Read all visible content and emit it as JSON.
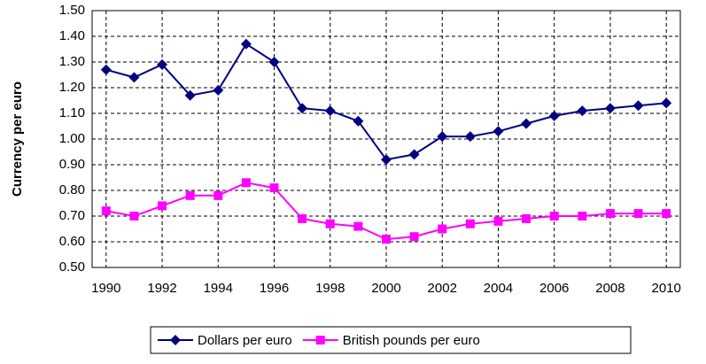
{
  "chart_data": {
    "type": "line",
    "y_label": "Currency per euro",
    "x": [
      1990,
      1991,
      1992,
      1993,
      1994,
      1995,
      1996,
      1997,
      1998,
      1999,
      2000,
      2001,
      2002,
      2003,
      2004,
      2005,
      2006,
      2007,
      2008,
      2009,
      2010
    ],
    "series": [
      {
        "name": "Dollars per euro",
        "color": "#000080",
        "marker": "diamond",
        "values": [
          1.27,
          1.24,
          1.29,
          1.17,
          1.19,
          1.37,
          1.3,
          1.12,
          1.11,
          1.07,
          0.92,
          0.94,
          1.01,
          1.01,
          1.03,
          1.06,
          1.09,
          1.11,
          1.12,
          1.13,
          1.14
        ]
      },
      {
        "name": "British pounds per euro",
        "color": "#ff00ff",
        "marker": "square",
        "values": [
          0.72,
          0.7,
          0.74,
          0.78,
          0.78,
          0.83,
          0.81,
          0.69,
          0.67,
          0.66,
          0.61,
          0.62,
          0.65,
          0.67,
          0.68,
          0.69,
          0.7,
          0.7,
          0.71,
          0.71,
          0.71
        ]
      }
    ],
    "xlim": [
      1989.5,
      2010.5
    ],
    "xticks": [
      1990,
      1992,
      1994,
      1996,
      1998,
      2000,
      2002,
      2004,
      2006,
      2008,
      2010
    ],
    "ylim": [
      0.5,
      1.5
    ],
    "yticks": [
      {
        "value": 0.5,
        "label": "0.50"
      },
      {
        "value": 0.6,
        "label": "0.60"
      },
      {
        "value": 0.7,
        "label": "0.70"
      },
      {
        "value": 0.8,
        "label": "0.80"
      },
      {
        "value": 0.9,
        "label": "0.90"
      },
      {
        "value": 1.0,
        "label": "1.00"
      },
      {
        "value": 1.1,
        "label": "1.10"
      },
      {
        "value": 1.2,
        "label": "1.20"
      },
      {
        "value": 1.3,
        "label": "1.30"
      },
      {
        "value": 1.4,
        "label": "1.40"
      },
      {
        "value": 1.5,
        "label": "1.50"
      }
    ],
    "grid": true,
    "legend": "bottom"
  }
}
